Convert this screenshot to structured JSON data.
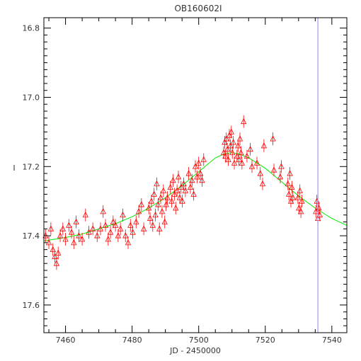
{
  "chart_data": {
    "type": "scatter",
    "title": "OB160602I",
    "xlabel": "JD - 2450000",
    "ylabel": "I",
    "xlim": [
      7453.5,
      7544.5
    ],
    "ylim": [
      17.68,
      16.77
    ],
    "y_inverted": true,
    "x_ticks": [
      "7460",
      "7480",
      "7500",
      "7520",
      "7540"
    ],
    "y_ticks": [
      "16.8",
      "17.0",
      "17.2",
      "17.4",
      "17.6"
    ],
    "grid": false,
    "marker": "open-triangle-with-errorbar",
    "point_color": "#ff0000",
    "model_color": "#00ee00",
    "vline_color": "#8888ff",
    "vline_x": 7535.8,
    "model": {
      "x": [
        7453.5,
        7460,
        7465,
        7470,
        7475,
        7480,
        7485,
        7490,
        7495,
        7500,
        7505,
        7508,
        7510,
        7512,
        7515,
        7520,
        7525,
        7530,
        7535,
        7540,
        7544.5
      ],
      "y": [
        17.415,
        17.405,
        17.395,
        17.38,
        17.365,
        17.345,
        17.32,
        17.29,
        17.255,
        17.215,
        17.175,
        17.162,
        17.16,
        17.163,
        17.175,
        17.205,
        17.245,
        17.285,
        17.32,
        17.35,
        17.37
      ]
    },
    "points": [
      [
        7454.0,
        17.4
      ],
      [
        7455.0,
        17.42
      ],
      [
        7455.6,
        17.38
      ],
      [
        7456.2,
        17.44
      ],
      [
        7456.8,
        17.46
      ],
      [
        7457.3,
        17.48
      ],
      [
        7457.8,
        17.45
      ],
      [
        7458.4,
        17.4
      ],
      [
        7459.2,
        17.38
      ],
      [
        7460.0,
        17.41
      ],
      [
        7461.0,
        17.37
      ],
      [
        7461.8,
        17.39
      ],
      [
        7462.5,
        17.42
      ],
      [
        7463.2,
        17.36
      ],
      [
        7464.0,
        17.4
      ],
      [
        7465.0,
        17.41
      ],
      [
        7466.0,
        17.34
      ],
      [
        7467.0,
        17.39
      ],
      [
        7468.2,
        17.38
      ],
      [
        7469.5,
        17.4
      ],
      [
        7470.5,
        17.38
      ],
      [
        7471.3,
        17.33
      ],
      [
        7472.0,
        17.37
      ],
      [
        7472.8,
        17.41
      ],
      [
        7473.5,
        17.39
      ],
      [
        7474.3,
        17.36
      ],
      [
        7475.0,
        17.37
      ],
      [
        7475.8,
        17.4
      ],
      [
        7476.5,
        17.38
      ],
      [
        7477.2,
        17.34
      ],
      [
        7478.0,
        17.4
      ],
      [
        7478.8,
        17.42
      ],
      [
        7479.5,
        17.37
      ],
      [
        7480.2,
        17.39
      ],
      [
        7481.2,
        17.36
      ],
      [
        7482.0,
        17.33
      ],
      [
        7482.8,
        17.31
      ],
      [
        7483.5,
        17.38
      ],
      [
        7485.0,
        17.32
      ],
      [
        7485.4,
        17.35
      ],
      [
        7485.8,
        17.3
      ],
      [
        7486.2,
        17.37
      ],
      [
        7486.6,
        17.28
      ],
      [
        7487.0,
        17.34
      ],
      [
        7487.4,
        17.25
      ],
      [
        7487.8,
        17.31
      ],
      [
        7488.2,
        17.38
      ],
      [
        7488.6,
        17.29
      ],
      [
        7489.0,
        17.33
      ],
      [
        7489.4,
        17.27
      ],
      [
        7489.8,
        17.36
      ],
      [
        7490.2,
        17.31
      ],
      [
        7490.6,
        17.29
      ],
      [
        7491.5,
        17.26
      ],
      [
        7491.9,
        17.3
      ],
      [
        7492.3,
        17.24
      ],
      [
        7492.7,
        17.28
      ],
      [
        7493.1,
        17.32
      ],
      [
        7493.5,
        17.27
      ],
      [
        7493.9,
        17.23
      ],
      [
        7494.3,
        17.29
      ],
      [
        7494.7,
        17.26
      ],
      [
        7495.1,
        17.3
      ],
      [
        7495.5,
        17.25
      ],
      [
        7496.0,
        17.27
      ],
      [
        7497.0,
        17.22
      ],
      [
        7497.5,
        17.26
      ],
      [
        7498.0,
        17.24
      ],
      [
        7498.5,
        17.28
      ],
      [
        7499.0,
        17.2
      ],
      [
        7499.5,
        17.23
      ],
      [
        7500.0,
        17.19
      ],
      [
        7500.5,
        17.22
      ],
      [
        7501.0,
        17.24
      ],
      [
        7501.5,
        17.18
      ],
      [
        7507.5,
        17.16
      ],
      [
        7507.8,
        17.13
      ],
      [
        7508.0,
        17.17
      ],
      [
        7508.3,
        17.12
      ],
      [
        7508.6,
        17.15
      ],
      [
        7508.9,
        17.18
      ],
      [
        7509.2,
        17.11
      ],
      [
        7509.5,
        17.14
      ],
      [
        7509.8,
        17.1
      ],
      [
        7510.1,
        17.16
      ],
      [
        7510.4,
        17.13
      ],
      [
        7510.7,
        17.19
      ],
      [
        7511.5,
        17.17
      ],
      [
        7511.8,
        17.14
      ],
      [
        7512.1,
        17.18
      ],
      [
        7512.4,
        17.12
      ],
      [
        7512.7,
        17.16
      ],
      [
        7513.0,
        17.19
      ],
      [
        7513.5,
        17.07
      ],
      [
        7514.5,
        17.17
      ],
      [
        7515.5,
        17.15
      ],
      [
        7516.0,
        17.2
      ],
      [
        7517.5,
        17.19
      ],
      [
        7518.5,
        17.22
      ],
      [
        7519.2,
        17.25
      ],
      [
        7519.6,
        17.14
      ],
      [
        7522.3,
        17.12
      ],
      [
        7522.6,
        17.21
      ],
      [
        7524.5,
        17.23
      ],
      [
        7524.8,
        17.2
      ],
      [
        7526.8,
        17.25
      ],
      [
        7527.1,
        17.28
      ],
      [
        7527.4,
        17.22
      ],
      [
        7527.7,
        17.3
      ],
      [
        7528.0,
        17.26
      ],
      [
        7528.3,
        17.29
      ],
      [
        7529.8,
        17.29
      ],
      [
        7530.1,
        17.32
      ],
      [
        7530.4,
        17.27
      ],
      [
        7530.7,
        17.33
      ],
      [
        7531.0,
        17.3
      ],
      [
        7535.2,
        17.33
      ],
      [
        7535.5,
        17.3
      ],
      [
        7535.8,
        17.35
      ],
      [
        7536.1,
        17.32
      ],
      [
        7536.4,
        17.34
      ]
    ]
  }
}
